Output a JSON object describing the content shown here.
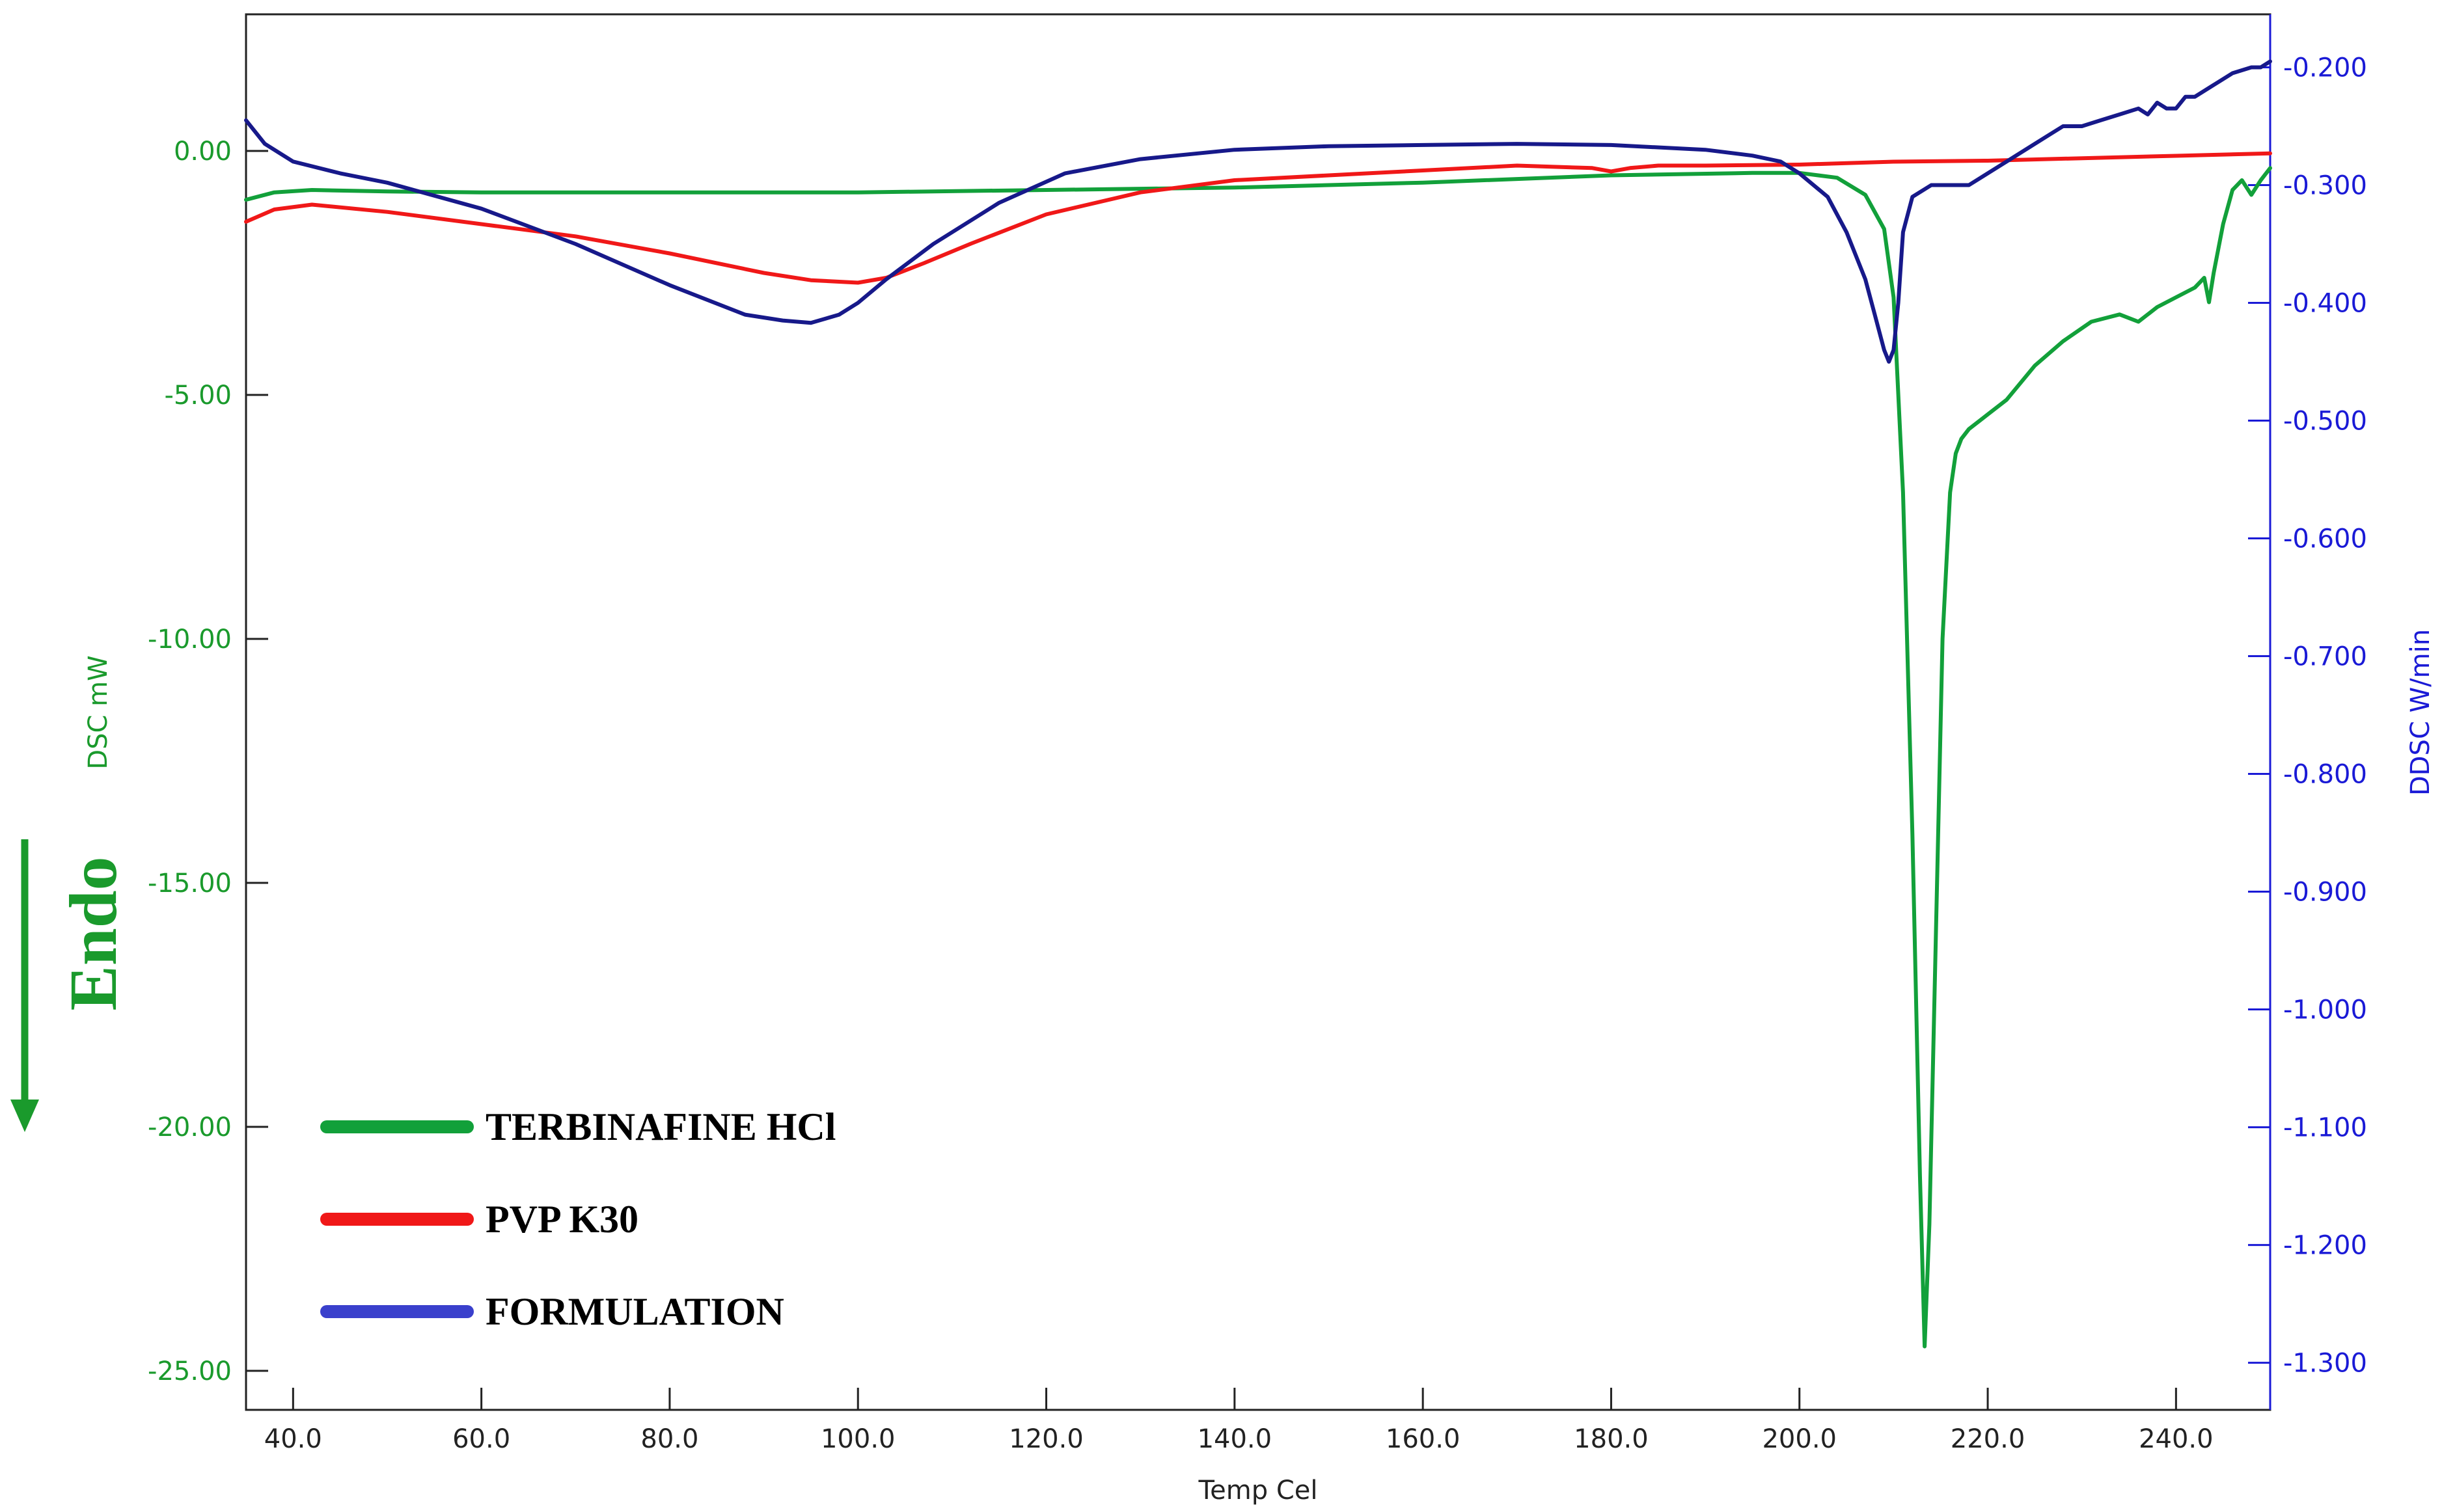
{
  "chart_data": {
    "type": "line",
    "xlabel": "Temp Cel",
    "ylabel_left": "DSC mW",
    "ylabel_right": "DDSC W/min",
    "annotation": "Endo",
    "xlim": [
      35,
      250
    ],
    "ylim_left": [
      -25.8,
      2.8
    ],
    "ylim_right": [
      -1.34,
      -0.155
    ],
    "x_ticks": [
      "40.0",
      "60.0",
      "80.0",
      "100.0",
      "120.0",
      "140.0",
      "160.0",
      "180.0",
      "200.0",
      "220.0",
      "240.0"
    ],
    "y_left_ticks": [
      "0.00",
      "-5.00",
      "-10.00",
      "-15.00",
      "-20.00",
      "-25.00"
    ],
    "y_right_ticks": [
      "-0.200",
      "-0.300",
      "-0.400",
      "-0.500",
      "-0.600",
      "-0.700",
      "-0.800",
      "-0.900",
      "-1.000",
      "-1.100",
      "-1.200",
      "-1.300"
    ],
    "legend_position": "bottom-left",
    "series": [
      {
        "name": "TERBINAFINE HCl",
        "color": "#12a03a",
        "axis": "left",
        "x": [
          35,
          38,
          42,
          50,
          60,
          80,
          100,
          120,
          140,
          160,
          180,
          195,
          200,
          204,
          207,
          209,
          210,
          211,
          212,
          212.8,
          213.3,
          213.8,
          214.5,
          215.2,
          216,
          216.6,
          217.2,
          218,
          220,
          222,
          225,
          228,
          231,
          234,
          236,
          238,
          240,
          242,
          243,
          243.5,
          244,
          245,
          246,
          247,
          248,
          249,
          250
        ],
        "y": [
          -1.0,
          -0.85,
          -0.8,
          -0.83,
          -0.85,
          -0.85,
          -0.85,
          -0.8,
          -0.75,
          -0.65,
          -0.5,
          -0.45,
          -0.45,
          -0.55,
          -0.9,
          -1.6,
          -3.0,
          -7.0,
          -14.0,
          -21.0,
          -24.5,
          -22.0,
          -16.0,
          -10.0,
          -7.0,
          -6.2,
          -5.9,
          -5.7,
          -5.4,
          -5.1,
          -4.4,
          -3.9,
          -3.5,
          -3.35,
          -3.5,
          -3.2,
          -3.0,
          -2.8,
          -2.6,
          -3.1,
          -2.5,
          -1.5,
          -0.8,
          -0.6,
          -0.9,
          -0.6,
          -0.35
        ]
      },
      {
        "name": "PVP K30",
        "color": "#f01818",
        "axis": "left",
        "x": [
          35,
          38,
          42,
          50,
          60,
          70,
          80,
          90,
          95,
          100,
          103,
          107,
          112,
          120,
          130,
          140,
          150,
          160,
          170,
          178,
          180,
          182,
          185,
          190,
          200,
          210,
          220,
          230,
          240,
          250
        ],
        "y": [
          -1.45,
          -1.2,
          -1.1,
          -1.25,
          -1.5,
          -1.75,
          -2.1,
          -2.5,
          -2.65,
          -2.7,
          -2.6,
          -2.3,
          -1.9,
          -1.3,
          -0.85,
          -0.6,
          -0.5,
          -0.4,
          -0.3,
          -0.35,
          -0.42,
          -0.35,
          -0.3,
          -0.3,
          -0.28,
          -0.22,
          -0.2,
          -0.15,
          -0.1,
          -0.05
        ]
      },
      {
        "name": "FORMULATION",
        "color": "#17198a",
        "axis": "right",
        "x": [
          35,
          37,
          40,
          45,
          50,
          60,
          70,
          80,
          88,
          92,
          95,
          98,
          100,
          103,
          108,
          115,
          122,
          130,
          140,
          150,
          160,
          170,
          180,
          190,
          195,
          198,
          200,
          203,
          205,
          207,
          208,
          209,
          209.5,
          210,
          210.5,
          211,
          212,
          214,
          216,
          218,
          220,
          222,
          225,
          227,
          228,
          230,
          232,
          234,
          236,
          237,
          238,
          239,
          240,
          241,
          242,
          244,
          246,
          248,
          249,
          250
        ],
        "y": [
          -0.245,
          -0.265,
          -0.28,
          -0.29,
          -0.298,
          -0.32,
          -0.35,
          -0.385,
          -0.41,
          -0.415,
          -0.417,
          -0.41,
          -0.4,
          -0.38,
          -0.35,
          -0.315,
          -0.29,
          -0.278,
          -0.27,
          -0.267,
          -0.266,
          -0.265,
          -0.266,
          -0.27,
          -0.275,
          -0.28,
          -0.29,
          -0.31,
          -0.34,
          -0.38,
          -0.41,
          -0.44,
          -0.45,
          -0.44,
          -0.4,
          -0.34,
          -0.31,
          -0.3,
          -0.3,
          -0.3,
          -0.29,
          -0.28,
          -0.265,
          -0.255,
          -0.25,
          -0.25,
          -0.245,
          -0.24,
          -0.235,
          -0.24,
          -0.23,
          -0.235,
          -0.235,
          -0.225,
          -0.225,
          -0.215,
          -0.205,
          -0.2,
          -0.2,
          -0.195
        ]
      }
    ]
  }
}
